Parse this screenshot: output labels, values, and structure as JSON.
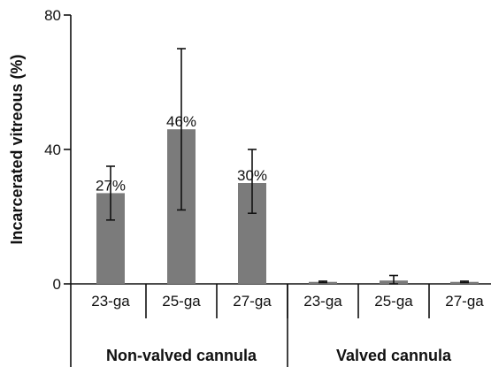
{
  "chart_data": {
    "type": "bar",
    "ylabel": "Incarcerated vitreous (%)",
    "ylim": [
      0,
      80
    ],
    "yticks": [
      0,
      40,
      80
    ],
    "groups": [
      {
        "name": "Non-valved cannula",
        "categories": [
          "23-ga",
          "25-ga",
          "27-ga"
        ],
        "values": [
          27,
          46,
          30
        ],
        "error_low": [
          19,
          22,
          21
        ],
        "error_high": [
          35,
          70,
          40
        ],
        "data_labels": [
          "27%",
          "46%",
          "30%"
        ]
      },
      {
        "name": "Valved cannula",
        "categories": [
          "23-ga",
          "25-ga",
          "27-ga"
        ],
        "values": [
          0.6,
          1.0,
          0.6
        ],
        "error_low": [
          0.4,
          0,
          0.4
        ],
        "error_high": [
          0.8,
          2.5,
          0.8
        ],
        "data_labels": [
          "",
          "",
          ""
        ]
      }
    ],
    "bar_color": "#7b7b7b",
    "grid": false,
    "legend": "none"
  }
}
